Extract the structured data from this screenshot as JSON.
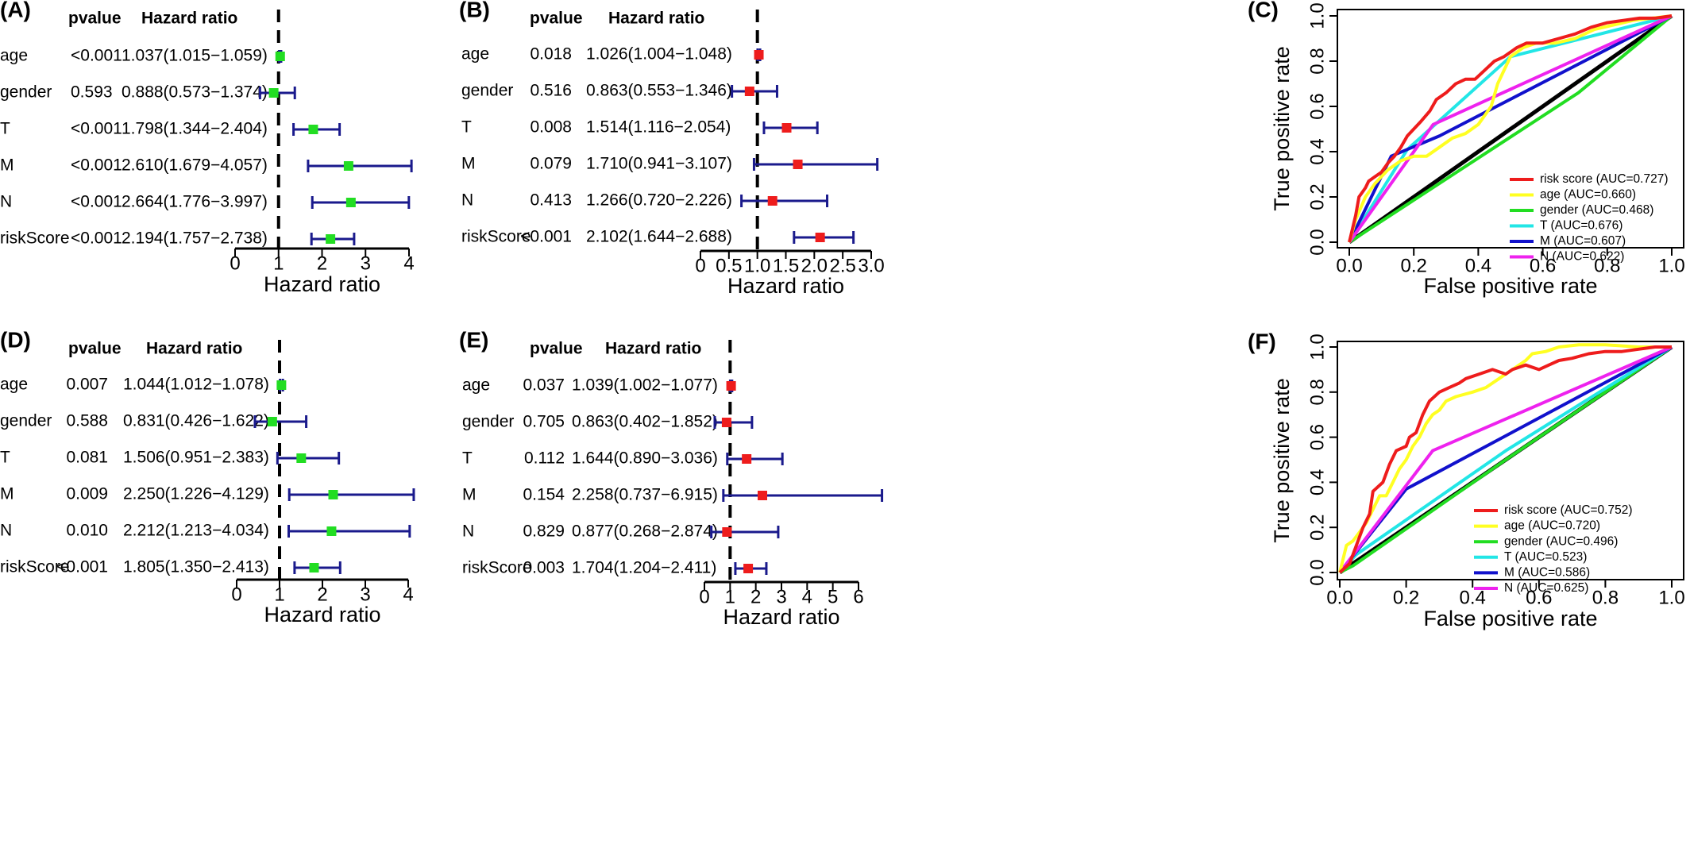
{
  "chart_data": [
    {
      "panel_label": "(A)",
      "type": "forest",
      "headers": {
        "pvalue": "pvalue",
        "hazard_ratio": "Hazard ratio"
      },
      "marker_color": "#22dd22",
      "rows": [
        {
          "variable": "age",
          "pvalue": "<0.001",
          "hr_text": "1.037(1.015−1.059)",
          "hr": 1.037,
          "low": 1.015,
          "high": 1.059
        },
        {
          "variable": "gender",
          "pvalue": "0.593",
          "hr_text": "0.888(0.573−1.374)",
          "hr": 0.888,
          "low": 0.573,
          "high": 1.374
        },
        {
          "variable": "T",
          "pvalue": "<0.001",
          "hr_text": "1.798(1.344−2.404)",
          "hr": 1.798,
          "low": 1.344,
          "high": 2.404
        },
        {
          "variable": "M",
          "pvalue": "<0.001",
          "hr_text": "2.610(1.679−4.057)",
          "hr": 2.61,
          "low": 1.679,
          "high": 4.057
        },
        {
          "variable": "N",
          "pvalue": "<0.001",
          "hr_text": "2.664(1.776−3.997)",
          "hr": 2.664,
          "low": 1.776,
          "high": 3.997
        },
        {
          "variable": "riskScore",
          "pvalue": "<0.001",
          "hr_text": "2.194(1.757−2.738)",
          "hr": 2.194,
          "low": 1.757,
          "high": 2.738
        }
      ],
      "xlabel": "Hazard ratio",
      "xlim": [
        0,
        4
      ],
      "ticks": [
        0,
        1,
        2,
        3,
        4
      ],
      "tick_labels": [
        "0",
        "1",
        "2",
        "3",
        "4"
      ]
    },
    {
      "panel_label": "(B)",
      "type": "forest",
      "headers": {
        "pvalue": "pvalue",
        "hazard_ratio": "Hazard ratio"
      },
      "marker_color": "#ee1c1c",
      "rows": [
        {
          "variable": "age",
          "pvalue": "0.018",
          "hr_text": "1.026(1.004−1.048)",
          "hr": 1.026,
          "low": 1.004,
          "high": 1.048
        },
        {
          "variable": "gender",
          "pvalue": "0.516",
          "hr_text": "0.863(0.553−1.346)",
          "hr": 0.863,
          "low": 0.553,
          "high": 1.346
        },
        {
          "variable": "T",
          "pvalue": "0.008",
          "hr_text": "1.514(1.116−2.054)",
          "hr": 1.514,
          "low": 1.116,
          "high": 2.054
        },
        {
          "variable": "M",
          "pvalue": "0.079",
          "hr_text": "1.710(0.941−3.107)",
          "hr": 1.71,
          "low": 0.941,
          "high": 3.107
        },
        {
          "variable": "N",
          "pvalue": "0.413",
          "hr_text": "1.266(0.720−2.226)",
          "hr": 1.266,
          "low": 0.72,
          "high": 2.226
        },
        {
          "variable": "riskScore",
          "pvalue": "<0.001",
          "hr_text": "2.102(1.644−2.688)",
          "hr": 2.102,
          "low": 1.644,
          "high": 2.688
        }
      ],
      "xlabel": "Hazard ratio",
      "xlim": [
        0,
        3
      ],
      "ticks": [
        0,
        0.5,
        1,
        1.5,
        2,
        2.5,
        3
      ],
      "tick_labels": [
        "0",
        "0.5",
        "1.0",
        "1.5",
        "2.0",
        "2.5",
        "3.0"
      ]
    },
    {
      "panel_label": "(C)",
      "type": "line",
      "xlabel": "False positive rate",
      "ylabel": "True positive rate",
      "xlim": [
        0,
        1
      ],
      "ylim": [
        0,
        1
      ],
      "ticks": [
        0,
        0.2,
        0.4,
        0.6,
        0.8,
        1
      ],
      "tick_labels": [
        "0.0",
        "0.2",
        "0.4",
        "0.6",
        "0.8",
        "1.0"
      ],
      "legend_position": "bottom-right",
      "reference_line_color": "#000000",
      "series": [
        {
          "name": "risk score (AUC=0.727)",
          "color": "#ee1c1c",
          "points": [
            [
              0,
              0
            ],
            [
              0.01,
              0.06
            ],
            [
              0.02,
              0.12
            ],
            [
              0.03,
              0.2
            ],
            [
              0.05,
              0.24
            ],
            [
              0.06,
              0.27
            ],
            [
              0.08,
              0.29
            ],
            [
              0.1,
              0.31
            ],
            [
              0.12,
              0.35
            ],
            [
              0.14,
              0.38
            ],
            [
              0.16,
              0.42
            ],
            [
              0.18,
              0.47
            ],
            [
              0.2,
              0.5
            ],
            [
              0.22,
              0.53
            ],
            [
              0.25,
              0.58
            ],
            [
              0.27,
              0.63
            ],
            [
              0.3,
              0.66
            ],
            [
              0.33,
              0.7
            ],
            [
              0.36,
              0.72
            ],
            [
              0.39,
              0.72
            ],
            [
              0.42,
              0.76
            ],
            [
              0.45,
              0.8
            ],
            [
              0.48,
              0.82
            ],
            [
              0.52,
              0.86
            ],
            [
              0.55,
              0.88
            ],
            [
              0.6,
              0.88
            ],
            [
              0.65,
              0.9
            ],
            [
              0.7,
              0.92
            ],
            [
              0.75,
              0.95
            ],
            [
              0.8,
              0.97
            ],
            [
              0.85,
              0.98
            ],
            [
              0.9,
              0.99
            ],
            [
              0.95,
              0.99
            ],
            [
              1,
              1
            ]
          ]
        },
        {
          "name": "age (AUC=0.660)",
          "color": "#ffff22",
          "points": [
            [
              0,
              0
            ],
            [
              0.02,
              0.1
            ],
            [
              0.05,
              0.2
            ],
            [
              0.08,
              0.26
            ],
            [
              0.12,
              0.32
            ],
            [
              0.16,
              0.36
            ],
            [
              0.2,
              0.38
            ],
            [
              0.24,
              0.38
            ],
            [
              0.28,
              0.42
            ],
            [
              0.32,
              0.46
            ],
            [
              0.36,
              0.48
            ],
            [
              0.4,
              0.52
            ],
            [
              0.44,
              0.6
            ],
            [
              0.46,
              0.7
            ],
            [
              0.48,
              0.76
            ],
            [
              0.5,
              0.82
            ],
            [
              0.54,
              0.86
            ],
            [
              0.58,
              0.88
            ],
            [
              0.64,
              0.88
            ],
            [
              0.7,
              0.9
            ],
            [
              0.76,
              0.94
            ],
            [
              0.82,
              0.96
            ],
            [
              0.88,
              0.98
            ],
            [
              0.94,
              0.99
            ],
            [
              1,
              1
            ]
          ]
        },
        {
          "name": "gender (AUC=0.468)",
          "color": "#22dd22",
          "points": [
            [
              0,
              0
            ],
            [
              0.71,
              0.66
            ],
            [
              1,
              1
            ]
          ]
        },
        {
          "name": "T (AUC=0.676)",
          "color": "#22e6e6",
          "points": [
            [
              0,
              0
            ],
            [
              0.18,
              0.41
            ],
            [
              0.5,
              0.82
            ],
            [
              1,
              1
            ]
          ]
        },
        {
          "name": "M (AUC=0.607)",
          "color": "#1111cc",
          "points": [
            [
              0,
              0
            ],
            [
              0.13,
              0.38
            ],
            [
              0.28,
              0.47
            ],
            [
              1,
              1
            ]
          ]
        },
        {
          "name": "N (AUC=0.622)",
          "color": "#ee22ee",
          "points": [
            [
              0,
              0
            ],
            [
              0.26,
              0.52
            ],
            [
              1,
              1
            ]
          ]
        }
      ]
    },
    {
      "panel_label": "(D)",
      "type": "forest",
      "headers": {
        "pvalue": "pvalue",
        "hazard_ratio": "Hazard ratio"
      },
      "marker_color": "#22dd22",
      "rows": [
        {
          "variable": "age",
          "pvalue": "0.007",
          "hr_text": "1.044(1.012−1.078)",
          "hr": 1.044,
          "low": 1.012,
          "high": 1.078
        },
        {
          "variable": "gender",
          "pvalue": "0.588",
          "hr_text": "0.831(0.426−1.622)",
          "hr": 0.831,
          "low": 0.426,
          "high": 1.622
        },
        {
          "variable": "T",
          "pvalue": "0.081",
          "hr_text": "1.506(0.951−2.383)",
          "hr": 1.506,
          "low": 0.951,
          "high": 2.383
        },
        {
          "variable": "M",
          "pvalue": "0.009",
          "hr_text": "2.250(1.226−4.129)",
          "hr": 2.25,
          "low": 1.226,
          "high": 4.129
        },
        {
          "variable": "N",
          "pvalue": "0.010",
          "hr_text": "2.212(1.213−4.034)",
          "hr": 2.212,
          "low": 1.213,
          "high": 4.034
        },
        {
          "variable": "riskScore",
          "pvalue": "<0.001",
          "hr_text": "1.805(1.350−2.413)",
          "hr": 1.805,
          "low": 1.35,
          "high": 2.413
        }
      ],
      "xlabel": "Hazard ratio",
      "xlim": [
        0,
        4
      ],
      "ticks": [
        0,
        1,
        2,
        3,
        4
      ],
      "tick_labels": [
        "0",
        "1",
        "2",
        "3",
        "4"
      ]
    },
    {
      "panel_label": "(E)",
      "type": "forest",
      "headers": {
        "pvalue": "pvalue",
        "hazard_ratio": "Hazard ratio"
      },
      "marker_color": "#ee1c1c",
      "rows": [
        {
          "variable": "age",
          "pvalue": "0.037",
          "hr_text": "1.039(1.002−1.077)",
          "hr": 1.039,
          "low": 1.002,
          "high": 1.077
        },
        {
          "variable": "gender",
          "pvalue": "0.705",
          "hr_text": "0.863(0.402−1.852)",
          "hr": 0.863,
          "low": 0.402,
          "high": 1.852
        },
        {
          "variable": "T",
          "pvalue": "0.112",
          "hr_text": "1.644(0.890−3.036)",
          "hr": 1.644,
          "low": 0.89,
          "high": 3.036
        },
        {
          "variable": "M",
          "pvalue": "0.154",
          "hr_text": "2.258(0.737−6.915)",
          "hr": 2.258,
          "low": 0.737,
          "high": 6.915
        },
        {
          "variable": "N",
          "pvalue": "0.829",
          "hr_text": "0.877(0.268−2.874)",
          "hr": 0.877,
          "low": 0.268,
          "high": 2.874
        },
        {
          "variable": "riskScore",
          "pvalue": "0.003",
          "hr_text": "1.704(1.204−2.411)",
          "hr": 1.704,
          "low": 1.204,
          "high": 2.411
        }
      ],
      "xlabel": "Hazard ratio",
      "xlim": [
        0,
        6
      ],
      "ticks": [
        0,
        1,
        2,
        3,
        4,
        5,
        6
      ],
      "tick_labels": [
        "0",
        "1",
        "2",
        "3",
        "4",
        "5",
        "6"
      ]
    },
    {
      "panel_label": "(F)",
      "type": "line",
      "xlabel": "False positive rate",
      "ylabel": "True positive rate",
      "xlim": [
        0,
        1
      ],
      "ylim": [
        0,
        1
      ],
      "ticks": [
        0,
        0.2,
        0.4,
        0.6,
        0.8,
        1
      ],
      "tick_labels": [
        "0.0",
        "0.2",
        "0.4",
        "0.6",
        "0.8",
        "1.0"
      ],
      "legend_position": "bottom-right",
      "reference_line_color": "#000000",
      "series": [
        {
          "name": "risk score (AUC=0.752)",
          "color": "#ee1c1c",
          "points": [
            [
              0,
              0
            ],
            [
              0.03,
              0.04
            ],
            [
              0.05,
              0.12
            ],
            [
              0.07,
              0.2
            ],
            [
              0.09,
              0.26
            ],
            [
              0.1,
              0.36
            ],
            [
              0.13,
              0.4
            ],
            [
              0.15,
              0.48
            ],
            [
              0.17,
              0.54
            ],
            [
              0.2,
              0.56
            ],
            [
              0.21,
              0.6
            ],
            [
              0.23,
              0.62
            ],
            [
              0.25,
              0.7
            ],
            [
              0.27,
              0.76
            ],
            [
              0.3,
              0.8
            ],
            [
              0.33,
              0.82
            ],
            [
              0.36,
              0.84
            ],
            [
              0.38,
              0.86
            ],
            [
              0.42,
              0.88
            ],
            [
              0.46,
              0.9
            ],
            [
              0.5,
              0.88
            ],
            [
              0.52,
              0.9
            ],
            [
              0.56,
              0.92
            ],
            [
              0.6,
              0.9
            ],
            [
              0.63,
              0.92
            ],
            [
              0.66,
              0.94
            ],
            [
              0.7,
              0.95
            ],
            [
              0.75,
              0.97
            ],
            [
              0.8,
              0.98
            ],
            [
              0.85,
              0.98
            ],
            [
              0.9,
              0.99
            ],
            [
              0.95,
              1
            ],
            [
              1,
              1
            ]
          ]
        },
        {
          "name": "age (AUC=0.720)",
          "color": "#ffff22",
          "points": [
            [
              0,
              0
            ],
            [
              0.02,
              0.12
            ],
            [
              0.04,
              0.14
            ],
            [
              0.06,
              0.18
            ],
            [
              0.08,
              0.22
            ],
            [
              0.1,
              0.28
            ],
            [
              0.12,
              0.34
            ],
            [
              0.14,
              0.34
            ],
            [
              0.16,
              0.4
            ],
            [
              0.18,
              0.46
            ],
            [
              0.2,
              0.5
            ],
            [
              0.22,
              0.56
            ],
            [
              0.24,
              0.6
            ],
            [
              0.26,
              0.66
            ],
            [
              0.28,
              0.7
            ],
            [
              0.3,
              0.72
            ],
            [
              0.32,
              0.76
            ],
            [
              0.35,
              0.78
            ],
            [
              0.4,
              0.8
            ],
            [
              0.44,
              0.82
            ],
            [
              0.48,
              0.86
            ],
            [
              0.52,
              0.9
            ],
            [
              0.56,
              0.94
            ],
            [
              0.58,
              0.97
            ],
            [
              0.62,
              0.98
            ],
            [
              0.66,
              1
            ],
            [
              0.72,
              1.01
            ],
            [
              0.8,
              1.01
            ],
            [
              0.9,
              1
            ],
            [
              1,
              1
            ]
          ]
        },
        {
          "name": "gender (AUC=0.496)",
          "color": "#22dd22",
          "points": [
            [
              0,
              0
            ],
            [
              0.04,
              0.03
            ],
            [
              0.5,
              0.5
            ],
            [
              1,
              1
            ]
          ]
        },
        {
          "name": "T (AUC=0.523)",
          "color": "#22e6e6",
          "points": [
            [
              0,
              0
            ],
            [
              0.05,
              0.08
            ],
            [
              0.5,
              0.54
            ],
            [
              1,
              1
            ]
          ]
        },
        {
          "name": "M (AUC=0.586)",
          "color": "#1111cc",
          "points": [
            [
              0,
              0
            ],
            [
              0.2,
              0.37
            ],
            [
              1,
              1
            ]
          ]
        },
        {
          "name": "N (AUC=0.625)",
          "color": "#ee22ee",
          "points": [
            [
              0,
              0
            ],
            [
              0.28,
              0.54
            ],
            [
              1,
              1
            ]
          ]
        }
      ]
    }
  ]
}
